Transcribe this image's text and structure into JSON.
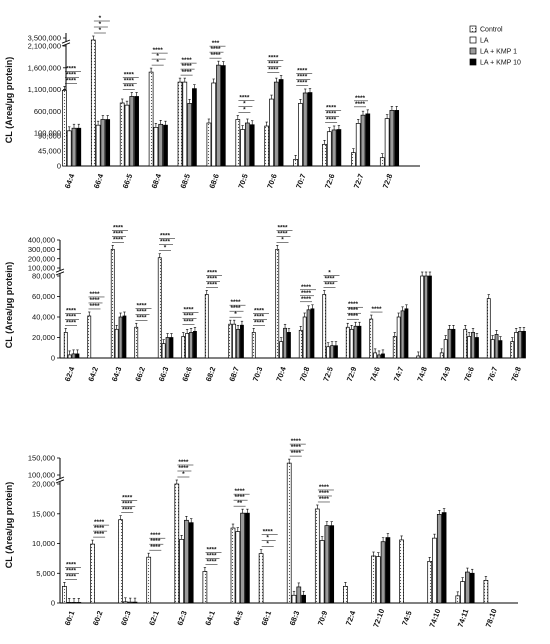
{
  "colors": {
    "control": "#ffffff",
    "la": "#ffffff",
    "kmp1": "#9a9a9a",
    "kmp10": "#000000",
    "axis": "#000000"
  },
  "legend": [
    "Control",
    "LA",
    "LA + KMP 1",
    "LA + KMP 10"
  ],
  "chart_data": [
    {
      "type": "bar",
      "ylabel": "CL (Area/µg protein)",
      "axis_breaks": [
        [
          90000,
          100000
        ],
        [
          2100000,
          3500000
        ]
      ],
      "yticks": [
        "3,500,000",
        "2,100,000",
        "1,600,000",
        "1,100,000",
        "600,000",
        "100,000",
        "90,000",
        "45,000",
        "0"
      ],
      "categories": [
        "64:4",
        "66:4",
        "66:5",
        "68:4",
        "68:5",
        "68:6",
        "70:5",
        "70:6",
        "70:7",
        "72:6",
        "72:7",
        "72:8"
      ],
      "series": [
        {
          "name": "Control",
          "values": [
            1080000,
            3500000,
            790000,
            1500000,
            1270000,
            330000,
            410000,
            260000,
            20000,
            65000,
            40000,
            25000
          ]
        },
        {
          "name": "LA",
          "values": [
            150000,
            280000,
            740000,
            230000,
            1270000,
            1250000,
            180000,
            880000,
            780000,
            130000,
            320000,
            430000
          ]
        },
        {
          "name": "LA + KMP 1",
          "values": [
            210000,
            410000,
            940000,
            300000,
            780000,
            1660000,
            330000,
            1270000,
            1020000,
            170000,
            510000,
            620000
          ]
        },
        {
          "name": "LA + KMP 10",
          "values": [
            210000,
            410000,
            940000,
            280000,
            1120000,
            1650000,
            290000,
            1330000,
            1030000,
            180000,
            540000,
            620000
          ]
        }
      ],
      "annotations": [
        "****",
        "****",
        "****",
        "*",
        "*",
        "*",
        "****",
        "****",
        "****",
        "*",
        "*",
        "****",
        "****",
        "****",
        "****",
        "****",
        "****",
        "***",
        "*",
        "*",
        "****",
        "****",
        "****",
        "****",
        "****",
        "****",
        "****",
        "****",
        "****",
        "****",
        "****",
        "****"
      ]
    },
    {
      "type": "bar",
      "ylabel": "CL (Area/µg protein)",
      "axis_breaks": [
        [
          80000,
          100000
        ]
      ],
      "yticks": [
        "400,000",
        "300,000",
        "200,000",
        "100,000",
        "80,000",
        "60,000",
        "40,000",
        "20,000",
        "0"
      ],
      "categories": [
        "62:4",
        "64:2",
        "64:3",
        "66:2",
        "66:3",
        "66:6",
        "68:2",
        "68:7",
        "70:3",
        "70:4",
        "70:8",
        "72:5",
        "72:9",
        "74:6",
        "74:7",
        "74:8",
        "74:9",
        "76:6",
        "76:7",
        "76:8"
      ],
      "series": [
        {
          "name": "Control",
          "values": [
            25000,
            41000,
            300000,
            30000,
            210000,
            21000,
            62000,
            33000,
            25000,
            300000,
            27000,
            62000,
            30000,
            38000,
            21000,
            2000,
            5000,
            28000,
            58000,
            16000
          ]
        },
        {
          "name": "LA",
          "values": [
            3000,
            0,
            28000,
            0,
            14000,
            24000,
            0,
            33000,
            0,
            16000,
            40000,
            11000,
            28000,
            5000,
            40000,
            80000,
            18000,
            21000,
            18000,
            25000
          ]
        },
        {
          "name": "LA + KMP 1",
          "values": [
            4000,
            0,
            40000,
            0,
            20000,
            25000,
            0,
            28000,
            0,
            29000,
            47000,
            12000,
            31000,
            3000,
            46000,
            80000,
            28000,
            25000,
            23000,
            26000
          ]
        },
        {
          "name": "LA + KMP 10",
          "values": [
            4000,
            0,
            41000,
            0,
            20000,
            26000,
            0,
            32000,
            0,
            25000,
            48000,
            12000,
            31000,
            4000,
            48000,
            80000,
            28000,
            20000,
            17000,
            26000
          ]
        }
      ],
      "annotations": [
        "****",
        "****",
        "****",
        "****",
        "****",
        "****",
        "****",
        "****",
        "****",
        "****",
        "****",
        "****",
        "*",
        "****",
        "****",
        "****",
        "****",
        "****",
        "****",
        "****",
        "****",
        "*",
        "****",
        "****",
        "****",
        "****",
        "****",
        "*",
        "****",
        "****",
        "****",
        "****",
        "****",
        "****",
        "****",
        "*",
        "****",
        "****",
        "****",
        "****"
      ]
    },
    {
      "type": "bar",
      "ylabel": "CL (Area/µg protein)",
      "axis_breaks": [
        [
          20000,
          100000
        ]
      ],
      "yticks": [
        "150,000",
        "100,000",
        "20,000",
        "15,000",
        "10,000",
        "5,000",
        "0"
      ],
      "categories": [
        "60:1",
        "60:2",
        "60:3",
        "62:1",
        "62:3",
        "64:1",
        "64:5",
        "66:1",
        "68:3",
        "70:9",
        "72:4",
        "72:10",
        "74:5",
        "74:10",
        "74:11",
        "78:10"
      ],
      "series": [
        {
          "name": "Control",
          "values": [
            2800,
            9900,
            14000,
            7700,
            20000,
            5300,
            12600,
            8300,
            135000,
            15800,
            2800,
            7900,
            10600,
            7000,
            1200,
            3800
          ]
        },
        {
          "name": "LA",
          "values": [
            100,
            0,
            200,
            0,
            10700,
            0,
            12000,
            0,
            1300,
            10500,
            0,
            7800,
            0,
            10900,
            3600,
            0
          ]
        },
        {
          "name": "LA + KMP 1",
          "values": [
            100,
            0,
            150,
            0,
            13900,
            0,
            15100,
            0,
            2700,
            13000,
            0,
            10300,
            0,
            14900,
            5200,
            0
          ]
        },
        {
          "name": "LA + KMP 10",
          "values": [
            100,
            0,
            150,
            0,
            13500,
            0,
            15100,
            0,
            1300,
            13000,
            0,
            11000,
            0,
            15200,
            5000,
            0
          ]
        }
      ],
      "annotations": [
        "****",
        "****",
        "****",
        "****",
        "****",
        "****",
        "****",
        "****",
        "****",
        "****",
        "****",
        "****",
        "*",
        "****",
        "****",
        "****",
        "****",
        "****",
        "**",
        "****",
        "****",
        "*",
        "*",
        "****",
        "****",
        "****",
        "****",
        "****",
        "****",
        "****"
      ]
    }
  ]
}
